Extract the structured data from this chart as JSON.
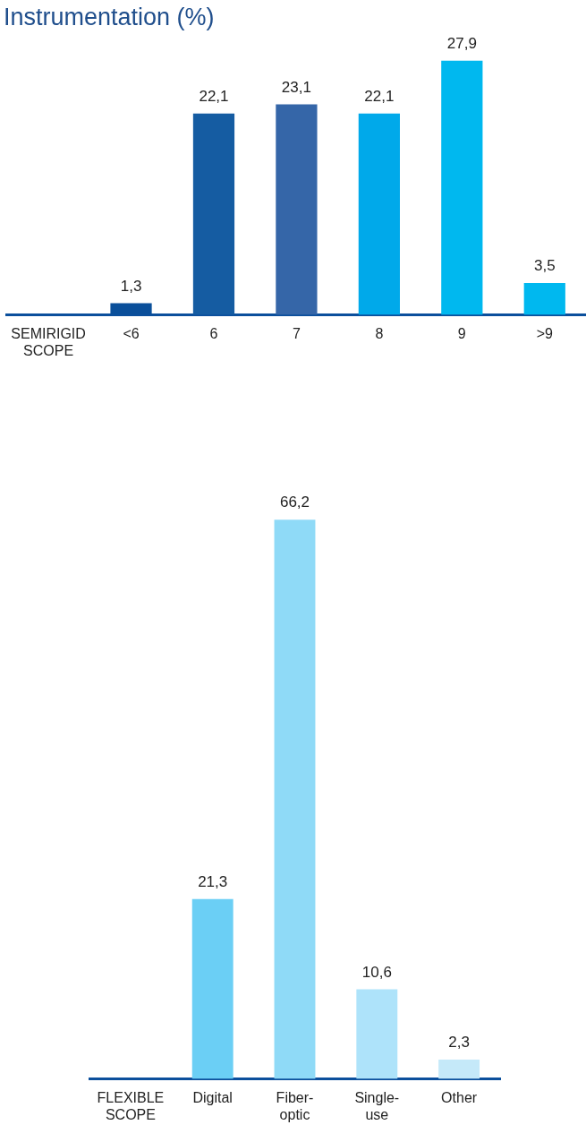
{
  "chart_data": [
    {
      "type": "bar",
      "title": "Instrumentation (%)",
      "categories": [
        "SEMIRIGID SCOPE",
        "<6",
        "6",
        "7",
        "8",
        "9",
        ">9"
      ],
      "values": [
        null,
        1.3,
        22.1,
        23.1,
        22.1,
        27.9,
        3.5
      ],
      "colors": [
        null,
        "#0a4f9a",
        "#155ca2",
        "#3566a8",
        "#00a9ea",
        "#00b8ef",
        "#00b8ef"
      ],
      "value_labels": [
        null,
        "1,3",
        "22,1",
        "23,1",
        "22,1",
        "27,9",
        "3,5"
      ]
    },
    {
      "type": "bar",
      "categories": [
        "FLEXIBLE SCOPE",
        "Digital",
        "Fiber-optic",
        "Single-use",
        "Other"
      ],
      "values": [
        null,
        21.3,
        66.2,
        10.6,
        2.3
      ],
      "colors": [
        null,
        "#6bcff5",
        "#8fdaf7",
        "#aee3fa",
        "#c5e9f9"
      ],
      "value_labels": [
        null,
        "21,3",
        "66,2",
        "10,6",
        "2,3"
      ]
    }
  ]
}
